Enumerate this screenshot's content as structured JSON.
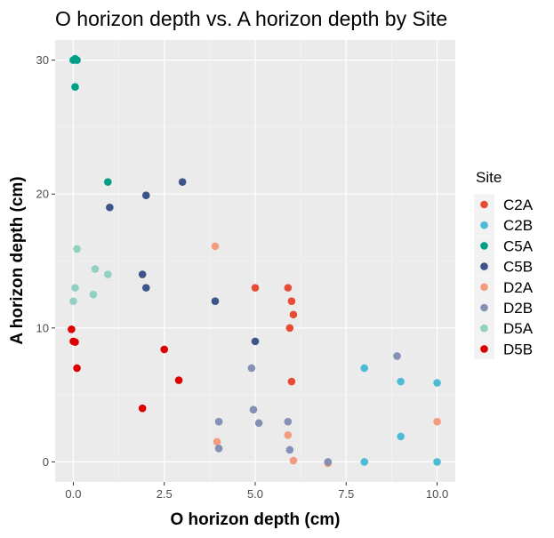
{
  "chart_data": {
    "type": "scatter",
    "title": "O horizon depth vs. A horizon depth by Site",
    "xlabel": "O horizon depth (cm)",
    "ylabel": "A horizon depth (cm)",
    "xlim": [
      -0.5,
      10.5
    ],
    "ylim": [
      -1.5,
      31.5
    ],
    "x_ticks": [
      0.0,
      2.5,
      5.0,
      7.5,
      10.0
    ],
    "x_tick_labels": [
      "0.0",
      "2.5",
      "5.0",
      "7.5",
      "10.0"
    ],
    "y_ticks": [
      0,
      10,
      20,
      30
    ],
    "y_tick_labels": [
      "0",
      "10",
      "20",
      "30"
    ],
    "grid": true,
    "legend": {
      "title": "Site",
      "position": "right"
    },
    "series": [
      {
        "name": "C2A",
        "color": "#E64B35",
        "points": [
          [
            5.0,
            13
          ],
          [
            5.9,
            13
          ],
          [
            6.0,
            12
          ],
          [
            6.05,
            11
          ],
          [
            5.95,
            10
          ],
          [
            6.0,
            6
          ]
        ]
      },
      {
        "name": "C2B",
        "color": "#4DBBD5",
        "points": [
          [
            8.0,
            7
          ],
          [
            9.0,
            6
          ],
          [
            10.0,
            5.9
          ],
          [
            9.0,
            1.9
          ],
          [
            8.0,
            0
          ],
          [
            10.0,
            0
          ]
        ]
      },
      {
        "name": "C5A",
        "color": "#00A087",
        "points": [
          [
            0.0,
            30
          ],
          [
            0.05,
            30.1
          ],
          [
            0.1,
            30
          ],
          [
            0.05,
            28
          ],
          [
            0.95,
            20.9
          ]
        ]
      },
      {
        "name": "C5B",
        "color": "#3C5488",
        "points": [
          [
            3.0,
            20.9
          ],
          [
            2.0,
            19.9
          ],
          [
            1.0,
            19
          ],
          [
            1.9,
            14
          ],
          [
            2.0,
            13
          ],
          [
            3.9,
            12
          ],
          [
            5.0,
            9
          ]
        ]
      },
      {
        "name": "D2A",
        "color": "#F39B7F",
        "points": [
          [
            3.9,
            16.1
          ],
          [
            3.95,
            1.5
          ],
          [
            5.9,
            2
          ],
          [
            6.05,
            0.1
          ],
          [
            7.0,
            -0.1
          ],
          [
            10.0,
            3
          ]
        ]
      },
      {
        "name": "D2B",
        "color": "#8491B4",
        "points": [
          [
            4.9,
            7
          ],
          [
            4.0,
            3
          ],
          [
            4.95,
            3.9
          ],
          [
            5.1,
            2.9
          ],
          [
            5.9,
            3
          ],
          [
            4.0,
            1
          ],
          [
            5.95,
            0.9
          ],
          [
            7.0,
            0
          ],
          [
            8.9,
            7.9
          ]
        ]
      },
      {
        "name": "D5A",
        "color": "#91D1C2",
        "points": [
          [
            0.1,
            15.9
          ],
          [
            0.6,
            14.4
          ],
          [
            0.95,
            14
          ],
          [
            0.05,
            13
          ],
          [
            0.55,
            12.5
          ],
          [
            0.0,
            12
          ]
        ]
      },
      {
        "name": "D5B",
        "color": "#DC0000",
        "points": [
          [
            -0.05,
            9.9
          ],
          [
            0.0,
            9
          ],
          [
            0.05,
            8.95
          ],
          [
            0.1,
            7
          ],
          [
            2.5,
            8.4
          ],
          [
            2.9,
            6.1
          ],
          [
            1.9,
            4
          ]
        ]
      }
    ]
  }
}
